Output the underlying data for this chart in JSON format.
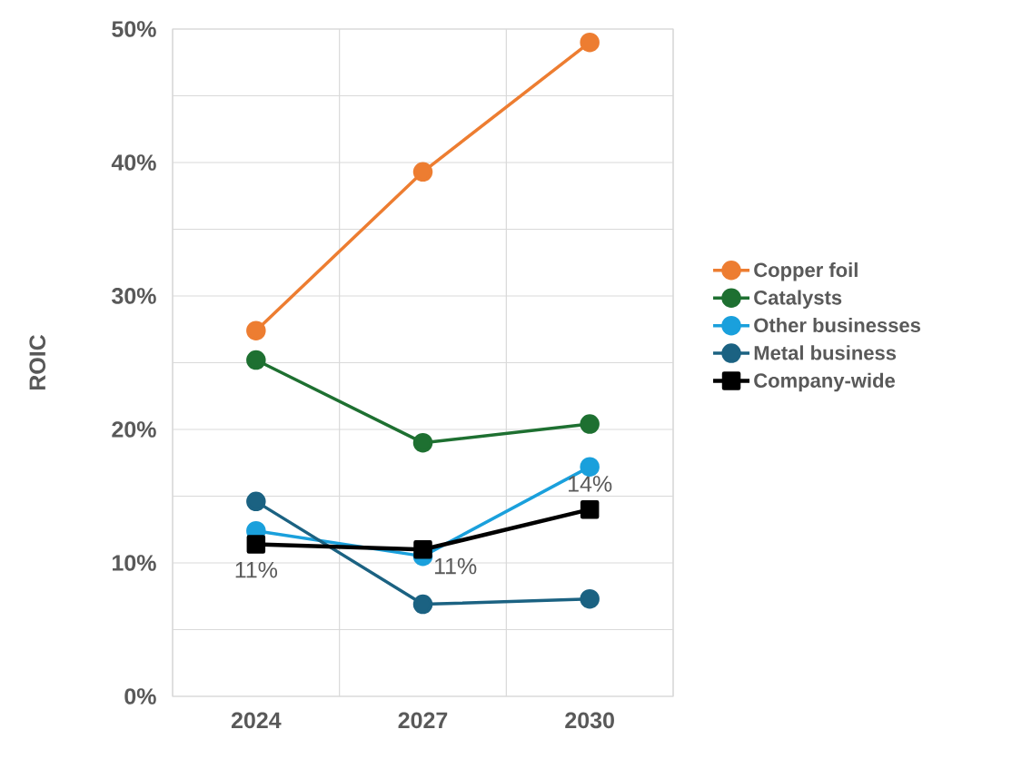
{
  "chart_data": {
    "type": "line",
    "ylabel": "ROIC",
    "categories": [
      "2024",
      "2027",
      "2030"
    ],
    "series": [
      {
        "name": "Copper foil",
        "color": "#ed7d31",
        "marker": "circle",
        "values": [
          27.4,
          39.3,
          49.0
        ]
      },
      {
        "name": "Catalysts",
        "color": "#1e7031",
        "marker": "circle",
        "values": [
          25.2,
          19.0,
          20.4
        ]
      },
      {
        "name": "Other businesses",
        "color": "#1aa0dc",
        "marker": "circle",
        "values": [
          12.4,
          10.5,
          17.2
        ]
      },
      {
        "name": "Metal business",
        "color": "#1b6282",
        "marker": "circle",
        "values": [
          14.6,
          6.9,
          7.3
        ]
      },
      {
        "name": "Company-wide",
        "color": "#000000",
        "marker": "square",
        "values": [
          11.4,
          11.0,
          14.0
        ],
        "value_labels": [
          "11%",
          "11%",
          "14%"
        ]
      }
    ],
    "ylim": [
      0,
      50
    ],
    "yticks": [
      {
        "value": 0,
        "label": "0%"
      },
      {
        "value": 5,
        "label": null
      },
      {
        "value": 10,
        "label": "10%"
      },
      {
        "value": 15,
        "label": null
      },
      {
        "value": 20,
        "label": "20%"
      },
      {
        "value": 25,
        "label": null
      },
      {
        "value": 30,
        "label": "30%"
      },
      {
        "value": 35,
        "label": null
      },
      {
        "value": 40,
        "label": "40%"
      },
      {
        "value": 45,
        "label": null
      },
      {
        "value": 50,
        "label": "50%"
      }
    ],
    "grid": true,
    "legend": "right",
    "line_style": "solid"
  }
}
